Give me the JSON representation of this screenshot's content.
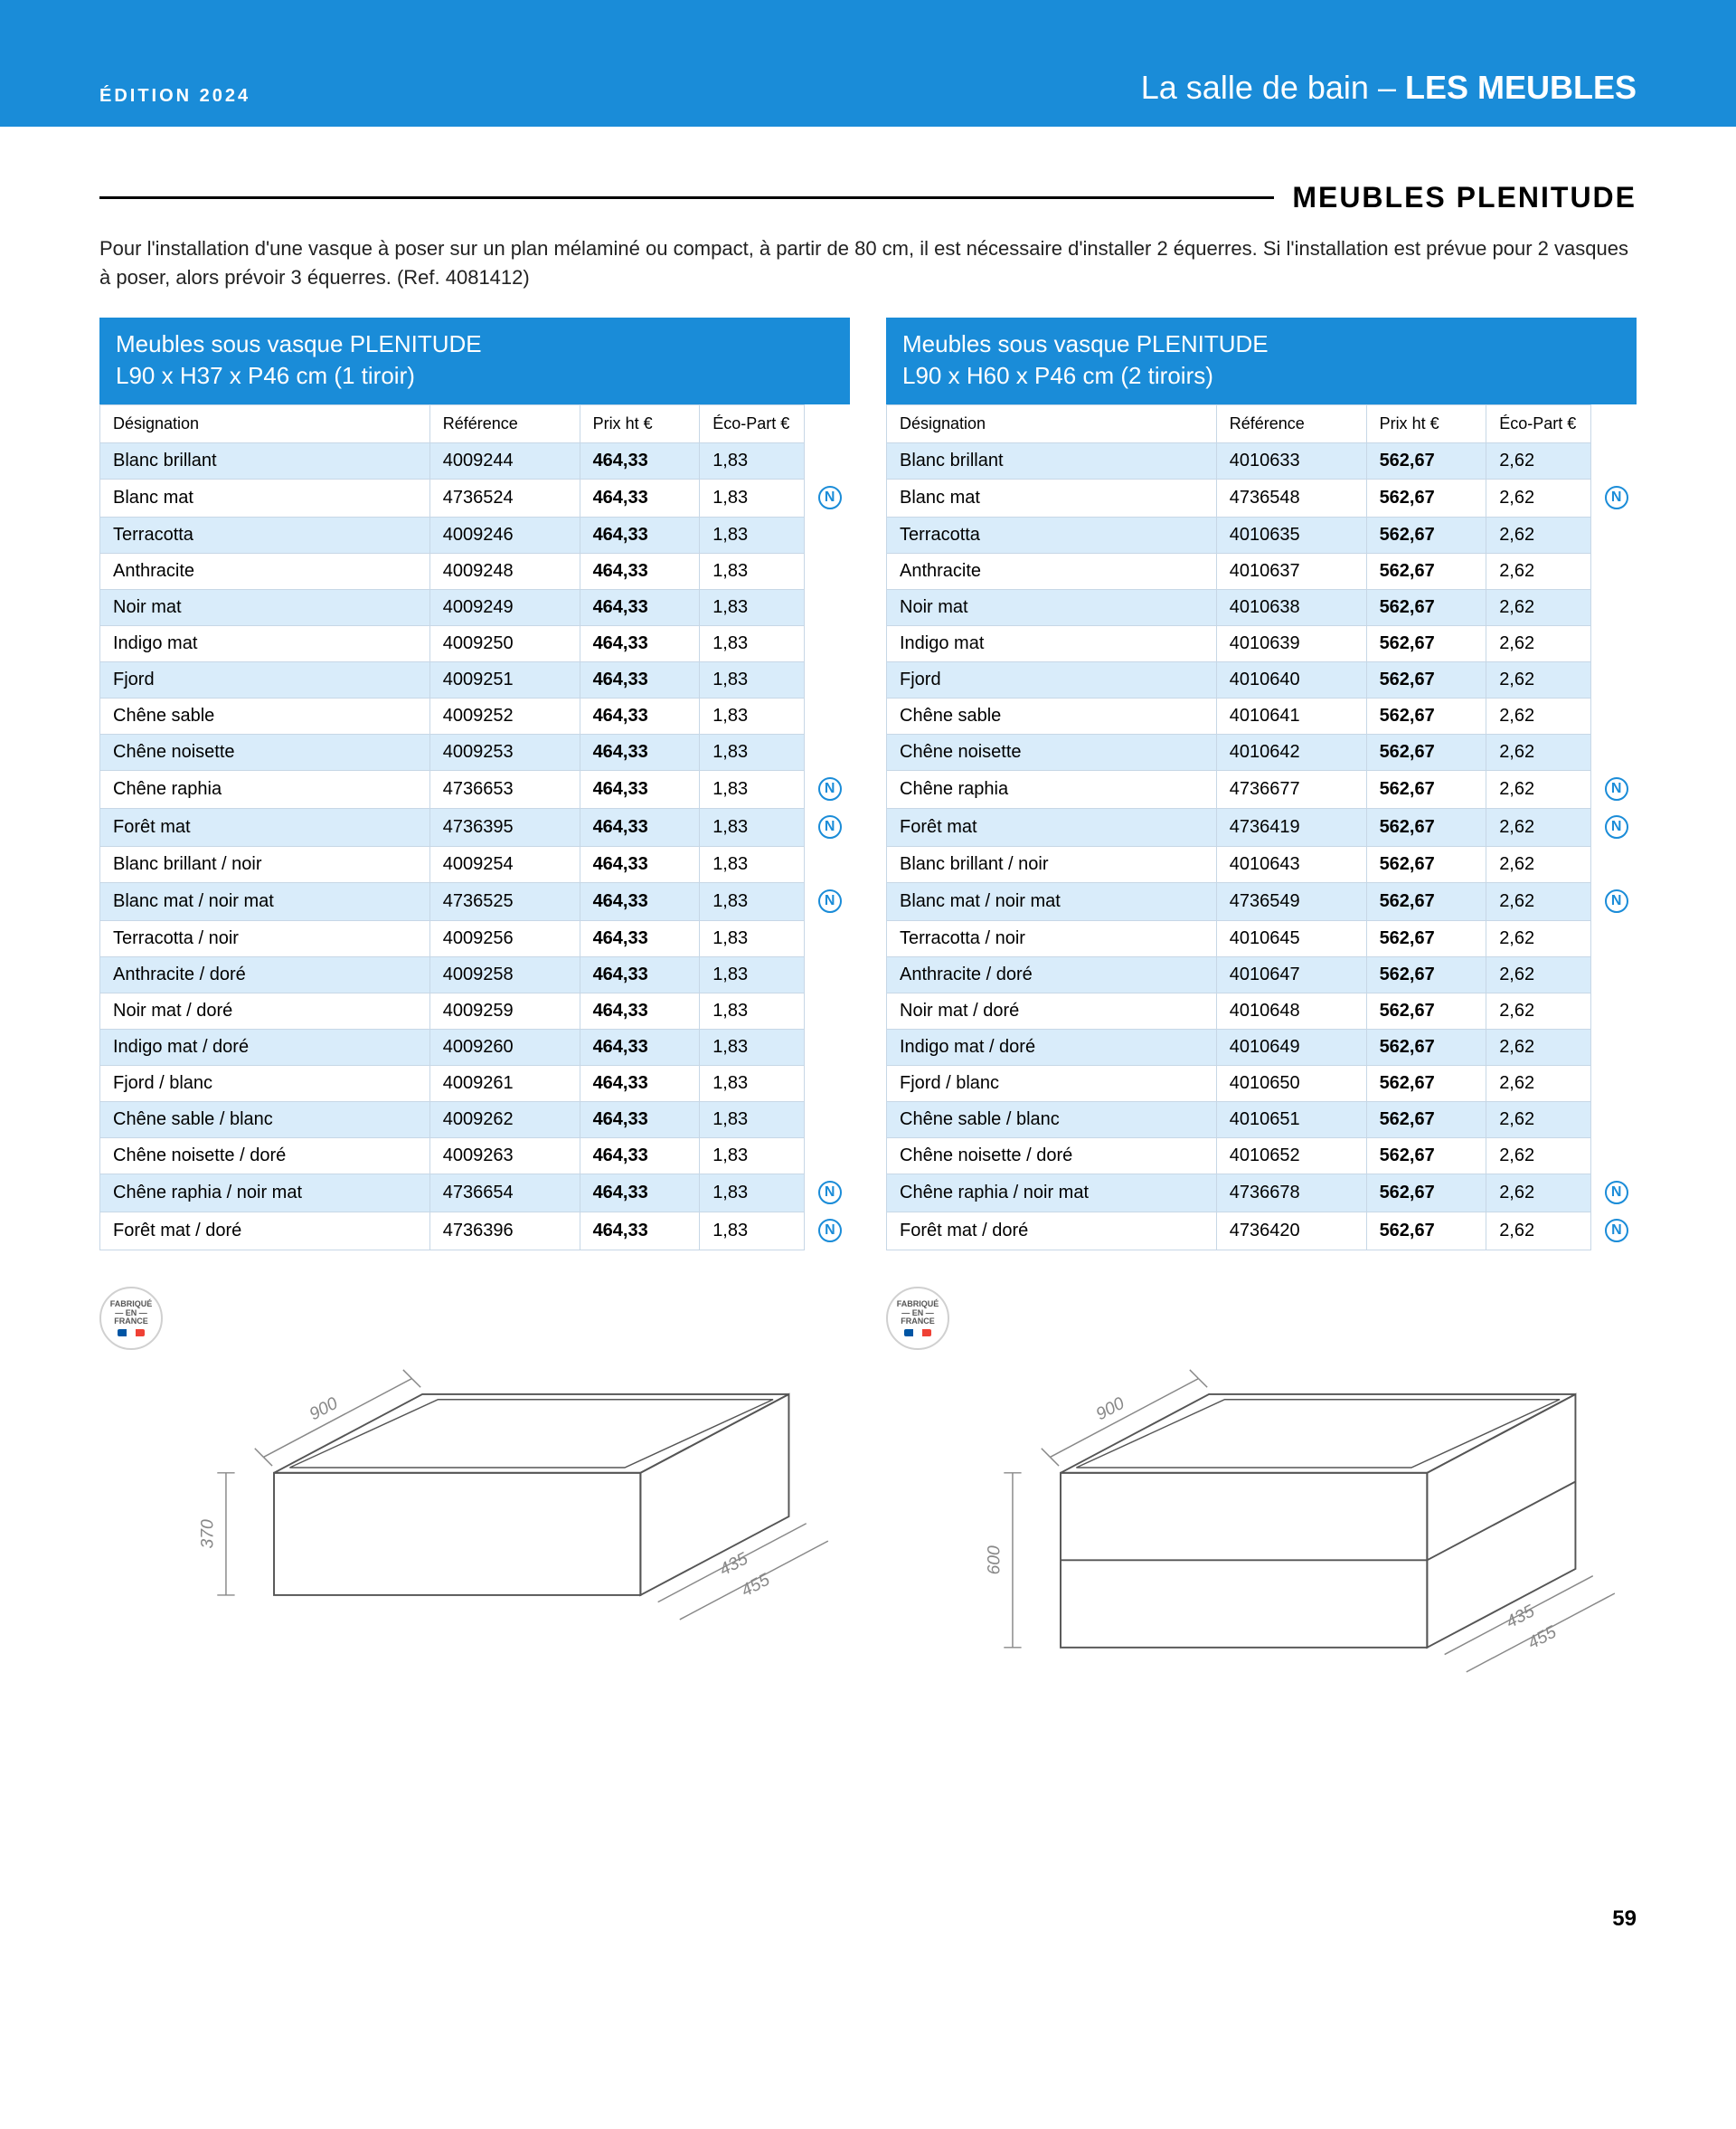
{
  "header": {
    "edition": "ÉDITION 2024",
    "right_thin": "La salle de bain – ",
    "right_bold": "LES MEUBLES"
  },
  "section_title": "MEUBLES PLENITUDE",
  "intro_text": "Pour l'installation d'une vasque à poser sur un plan mélaminé ou compact, à partir de 80 cm, il est nécessaire d'installer 2 équerres. Si l'installation est prévue pour 2 vasques à poser, alors prévoir 3 équerres. (Ref. 4081412)",
  "columns": [
    "Désignation",
    "Référence",
    "Prix ht €",
    "Éco-Part €"
  ],
  "tables": [
    {
      "title_line1": "Meubles sous vasque PLENITUDE",
      "title_line2": "L90 x H37 x P46 cm (1 tiroir)",
      "rows": [
        {
          "des": "Blanc brillant",
          "ref": "4009244",
          "prix": "464,33",
          "eco": "1,83",
          "n": false
        },
        {
          "des": "Blanc mat",
          "ref": "4736524",
          "prix": "464,33",
          "eco": "1,83",
          "n": true
        },
        {
          "des": "Terracotta",
          "ref": "4009246",
          "prix": "464,33",
          "eco": "1,83",
          "n": false
        },
        {
          "des": "Anthracite",
          "ref": "4009248",
          "prix": "464,33",
          "eco": "1,83",
          "n": false
        },
        {
          "des": "Noir mat",
          "ref": "4009249",
          "prix": "464,33",
          "eco": "1,83",
          "n": false
        },
        {
          "des": "Indigo mat",
          "ref": "4009250",
          "prix": "464,33",
          "eco": "1,83",
          "n": false
        },
        {
          "des": "Fjord",
          "ref": "4009251",
          "prix": "464,33",
          "eco": "1,83",
          "n": false
        },
        {
          "des": "Chêne sable",
          "ref": "4009252",
          "prix": "464,33",
          "eco": "1,83",
          "n": false
        },
        {
          "des": "Chêne noisette",
          "ref": "4009253",
          "prix": "464,33",
          "eco": "1,83",
          "n": false
        },
        {
          "des": "Chêne raphia",
          "ref": "4736653",
          "prix": "464,33",
          "eco": "1,83",
          "n": true
        },
        {
          "des": "Forêt mat",
          "ref": "4736395",
          "prix": "464,33",
          "eco": "1,83",
          "n": true
        },
        {
          "des": "Blanc brillant / noir",
          "ref": "4009254",
          "prix": "464,33",
          "eco": "1,83",
          "n": false
        },
        {
          "des": "Blanc mat / noir mat",
          "ref": "4736525",
          "prix": "464,33",
          "eco": "1,83",
          "n": true
        },
        {
          "des": "Terracotta / noir",
          "ref": "4009256",
          "prix": "464,33",
          "eco": "1,83",
          "n": false
        },
        {
          "des": "Anthracite / doré",
          "ref": "4009258",
          "prix": "464,33",
          "eco": "1,83",
          "n": false
        },
        {
          "des": "Noir mat / doré",
          "ref": "4009259",
          "prix": "464,33",
          "eco": "1,83",
          "n": false
        },
        {
          "des": "Indigo mat / doré",
          "ref": "4009260",
          "prix": "464,33",
          "eco": "1,83",
          "n": false
        },
        {
          "des": "Fjord / blanc",
          "ref": "4009261",
          "prix": "464,33",
          "eco": "1,83",
          "n": false
        },
        {
          "des": "Chêne sable / blanc",
          "ref": "4009262",
          "prix": "464,33",
          "eco": "1,83",
          "n": false
        },
        {
          "des": "Chêne noisette / doré",
          "ref": "4009263",
          "prix": "464,33",
          "eco": "1,83",
          "n": false
        },
        {
          "des": "Chêne raphia / noir mat",
          "ref": "4736654",
          "prix": "464,33",
          "eco": "1,83",
          "n": true
        },
        {
          "des": "Forêt mat / doré",
          "ref": "4736396",
          "prix": "464,33",
          "eco": "1,83",
          "n": true
        }
      ]
    },
    {
      "title_line1": "Meubles sous vasque PLENITUDE",
      "title_line2": "L90 x H60 x P46 cm (2 tiroirs)",
      "rows": [
        {
          "des": "Blanc brillant",
          "ref": "4010633",
          "prix": "562,67",
          "eco": "2,62",
          "n": false
        },
        {
          "des": "Blanc mat",
          "ref": "4736548",
          "prix": "562,67",
          "eco": "2,62",
          "n": true
        },
        {
          "des": "Terracotta",
          "ref": "4010635",
          "prix": "562,67",
          "eco": "2,62",
          "n": false
        },
        {
          "des": "Anthracite",
          "ref": "4010637",
          "prix": "562,67",
          "eco": "2,62",
          "n": false
        },
        {
          "des": "Noir mat",
          "ref": "4010638",
          "prix": "562,67",
          "eco": "2,62",
          "n": false
        },
        {
          "des": "Indigo mat",
          "ref": "4010639",
          "prix": "562,67",
          "eco": "2,62",
          "n": false
        },
        {
          "des": "Fjord",
          "ref": "4010640",
          "prix": "562,67",
          "eco": "2,62",
          "n": false
        },
        {
          "des": "Chêne sable",
          "ref": "4010641",
          "prix": "562,67",
          "eco": "2,62",
          "n": false
        },
        {
          "des": "Chêne noisette",
          "ref": "4010642",
          "prix": "562,67",
          "eco": "2,62",
          "n": false
        },
        {
          "des": "Chêne raphia",
          "ref": "4736677",
          "prix": "562,67",
          "eco": "2,62",
          "n": true
        },
        {
          "des": "Forêt mat",
          "ref": "4736419",
          "prix": "562,67",
          "eco": "2,62",
          "n": true
        },
        {
          "des": "Blanc brillant / noir",
          "ref": "4010643",
          "prix": "562,67",
          "eco": "2,62",
          "n": false
        },
        {
          "des": "Blanc mat / noir mat",
          "ref": "4736549",
          "prix": "562,67",
          "eco": "2,62",
          "n": true
        },
        {
          "des": "Terracotta / noir",
          "ref": "4010645",
          "prix": "562,67",
          "eco": "2,62",
          "n": false
        },
        {
          "des": "Anthracite / doré",
          "ref": "4010647",
          "prix": "562,67",
          "eco": "2,62",
          "n": false
        },
        {
          "des": "Noir mat / doré",
          "ref": "4010648",
          "prix": "562,67",
          "eco": "2,62",
          "n": false
        },
        {
          "des": "Indigo mat / doré",
          "ref": "4010649",
          "prix": "562,67",
          "eco": "2,62",
          "n": false
        },
        {
          "des": "Fjord / blanc",
          "ref": "4010650",
          "prix": "562,67",
          "eco": "2,62",
          "n": false
        },
        {
          "des": "Chêne sable / blanc",
          "ref": "4010651",
          "prix": "562,67",
          "eco": "2,62",
          "n": false
        },
        {
          "des": "Chêne noisette / doré",
          "ref": "4010652",
          "prix": "562,67",
          "eco": "2,62",
          "n": false
        },
        {
          "des": "Chêne raphia / noir mat",
          "ref": "4736678",
          "prix": "562,67",
          "eco": "2,62",
          "n": true
        },
        {
          "des": "Forêt mat / doré",
          "ref": "4736420",
          "prix": "562,67",
          "eco": "2,62",
          "n": true
        }
      ]
    }
  ],
  "fab_badge": {
    "line1": "FABRIQUÉ",
    "line2": "— EN —",
    "line3": "FRANCE"
  },
  "diagrams": [
    {
      "width_label": "900",
      "height_label": "370",
      "depth_inner_label": "435",
      "depth_outer_label": "455",
      "dim_color": "#888888",
      "stroke_color": "#555555",
      "drawers": 1
    },
    {
      "width_label": "900",
      "height_label": "600",
      "depth_inner_label": "435",
      "depth_outer_label": "455",
      "dim_color": "#888888",
      "stroke_color": "#555555",
      "drawers": 2
    }
  ],
  "page_number": "59",
  "colors": {
    "brand_blue": "#1a8cd8",
    "row_tint": "#d9ecfa",
    "border": "#c7d7e6",
    "text": "#222222"
  },
  "badge_letter": "N"
}
